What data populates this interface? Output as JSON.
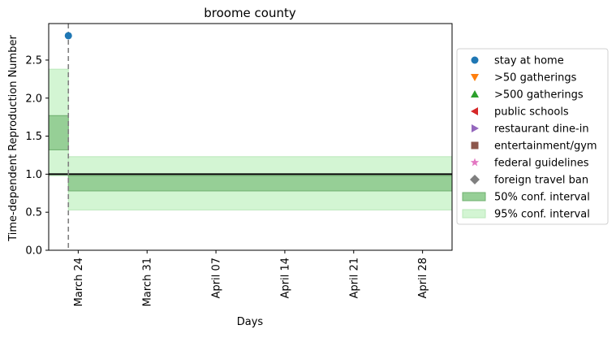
{
  "chart_data": {
    "type": "line",
    "title": "broome county",
    "xlabel": "Days",
    "ylabel": "Time-dependent Reproduction Number",
    "x_ticks": [
      "March 24",
      "March 31",
      "April 07",
      "April 14",
      "April 21",
      "April 28"
    ],
    "x_range": [
      "2020-03-21",
      "2020-05-01"
    ],
    "ylim": [
      0,
      2.98
    ],
    "y_ticks": [
      "0.0",
      "0.5",
      "1.0",
      "1.5",
      "2.0",
      "2.5"
    ],
    "reference_line": 1.0,
    "intervention_date": "2020-03-23",
    "stay_at_home_point": {
      "x": "2020-03-23",
      "y": 2.82
    },
    "intervals": {
      "ci50": [
        {
          "start": "2020-03-21",
          "end": "2020-03-23",
          "low": 1.32,
          "high": 1.77
        },
        {
          "start": "2020-03-23",
          "end": "2020-05-01",
          "low": 0.78,
          "high": 0.98
        }
      ],
      "ci95": [
        {
          "start": "2020-03-21",
          "end": "2020-03-23",
          "low": 0.98,
          "high": 2.38
        },
        {
          "start": "2020-03-23",
          "end": "2020-05-01",
          "low": 0.53,
          "high": 1.23
        }
      ]
    },
    "legend_position": "center-right outside",
    "legend": [
      {
        "label": "stay at home",
        "marker": "circle",
        "color": "#1f77b4"
      },
      {
        "label": ">50 gatherings",
        "marker": "triangle-down",
        "color": "#ff7f0e"
      },
      {
        "label": ">500 gatherings",
        "marker": "triangle-up",
        "color": "#2ca02c"
      },
      {
        "label": "public schools",
        "marker": "triangle-left",
        "color": "#d62728"
      },
      {
        "label": "restaurant dine-in",
        "marker": "triangle-right",
        "color": "#9467bd"
      },
      {
        "label": "entertainment/gym",
        "marker": "square",
        "color": "#8c564b"
      },
      {
        "label": "federal guidelines",
        "marker": "star",
        "color": "#e377c2"
      },
      {
        "label": "foreign travel ban",
        "marker": "diamond",
        "color": "#7f7f7f"
      },
      {
        "label": "50% conf. interval",
        "marker": "patch",
        "color": "#96cf96"
      },
      {
        "label": "95% conf. interval",
        "marker": "patch",
        "color": "#d3f5d3"
      }
    ],
    "colors": {
      "ci50": "#96cf96",
      "ci95": "#d3f5d3",
      "ci50_edge": "#6fb06f",
      "ci95_edge": "#b9e8b9",
      "reference_line": "#000000",
      "intervention_line": "#808080",
      "point": "#1f77b4"
    }
  }
}
